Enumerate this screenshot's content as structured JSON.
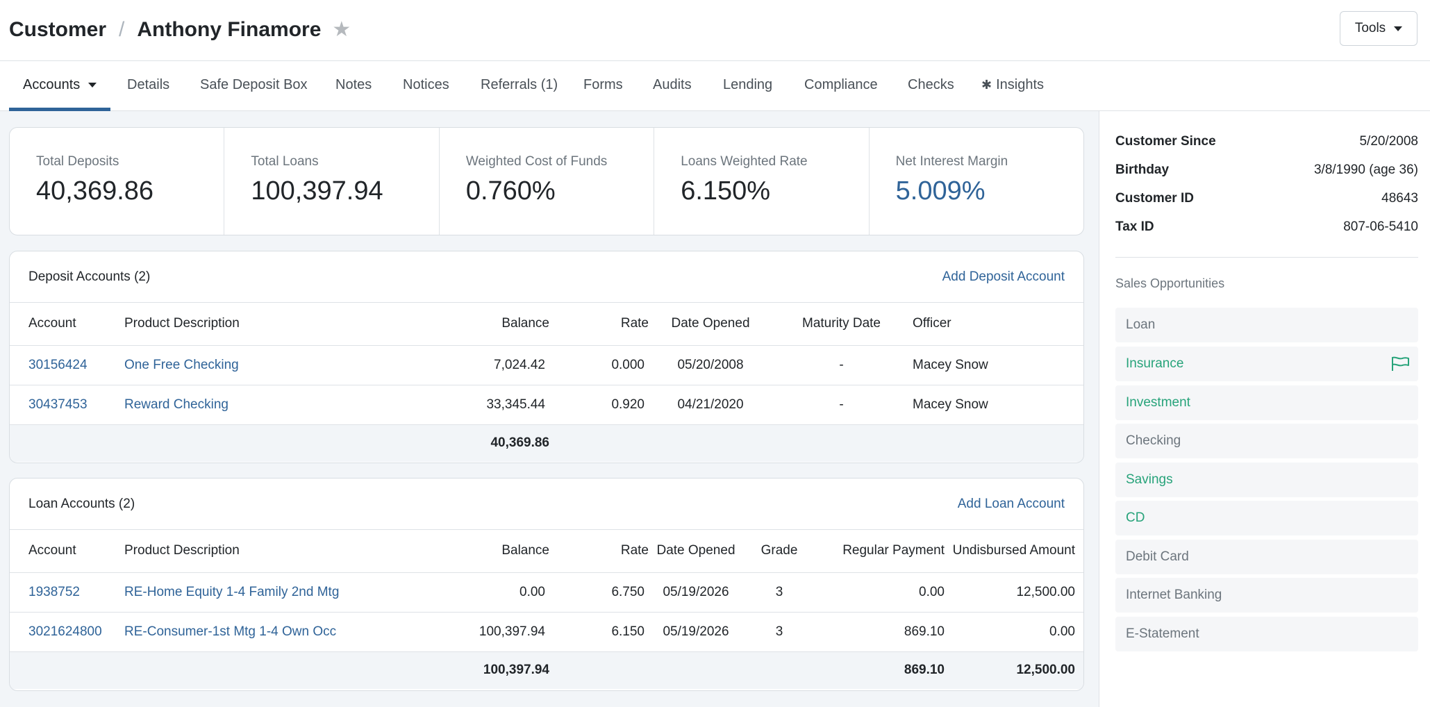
{
  "breadcrumb": {
    "section": "Customer",
    "separator": "/",
    "name": "Anthony Finamore",
    "favorite_icon": "star-icon"
  },
  "tools": {
    "label": "Tools"
  },
  "tabs": [
    {
      "label": "Accounts",
      "active": true,
      "has_dropdown": true
    },
    {
      "label": "Details"
    },
    {
      "label": "Safe Deposit Box"
    },
    {
      "label": "Notes"
    },
    {
      "label": "Notices"
    },
    {
      "label": "Referrals (1)"
    },
    {
      "label": "Forms"
    },
    {
      "label": "Audits"
    },
    {
      "label": "Lending"
    },
    {
      "label": "Compliance"
    },
    {
      "label": "Checks"
    },
    {
      "label": "Insights",
      "icon": "asterisk-icon",
      "icon_glyph": "✱"
    }
  ],
  "stats": [
    {
      "label": "Total Deposits",
      "value": "40,369.86"
    },
    {
      "label": "Total Loans",
      "value": "100,397.94"
    },
    {
      "label": "Weighted Cost of Funds",
      "value": "0.760%"
    },
    {
      "label": "Loans Weighted Rate",
      "value": "6.150%"
    },
    {
      "label": "Net Interest Margin",
      "value": "5.009%",
      "accent": "#2f6398"
    }
  ],
  "deposits": {
    "title": "Deposit Accounts (2)",
    "add_label": "Add Deposit Account",
    "columns": [
      "Account",
      "Product Description",
      "Balance",
      "Rate",
      "Date Opened",
      "Maturity Date",
      "Officer"
    ],
    "rows": [
      {
        "account": "30156424",
        "product": "One Free Checking",
        "balance": "7,024.42",
        "rate": "0.000",
        "opened": "05/20/2008",
        "maturity": "-",
        "officer": "Macey Snow"
      },
      {
        "account": "30437453",
        "product": "Reward Checking",
        "balance": "33,345.44",
        "rate": "0.920",
        "opened": "04/21/2020",
        "maturity": "-",
        "officer": "Macey Snow"
      }
    ],
    "total_balance": "40,369.86"
  },
  "loans": {
    "title": "Loan Accounts (2)",
    "add_label": "Add Loan Account",
    "columns": [
      "Account",
      "Product Description",
      "Balance",
      "Rate",
      "Date Opened",
      "Grade",
      "Regular Payment",
      "Undisbursed Amount"
    ],
    "rows": [
      {
        "account": "1938752",
        "product": "RE-Home Equity 1-4 Family 2nd Mtg",
        "balance": "0.00",
        "rate": "6.750",
        "opened": "05/19/2026",
        "grade": "3",
        "payment": "0.00",
        "undisbursed": "12,500.00"
      },
      {
        "account": "3021624800",
        "product": "RE-Consumer-1st Mtg 1-4 Own Occ",
        "balance": "100,397.94",
        "rate": "6.150",
        "opened": "05/19/2026",
        "grade": "3",
        "payment": "869.10",
        "undisbursed": "0.00"
      }
    ],
    "totals": {
      "balance": "100,397.94",
      "payment": "869.10",
      "undisbursed": "12,500.00"
    }
  },
  "customer_info": [
    {
      "label": "Customer Since",
      "value": "5/20/2008"
    },
    {
      "label": "Birthday",
      "value": "3/8/1990 (age 36)"
    },
    {
      "label": "Customer ID",
      "value": "48643"
    },
    {
      "label": "Tax ID",
      "value": "807-06-5410"
    }
  ],
  "sales": {
    "title": "Sales Opportunities",
    "highlight_color": "#27a37a",
    "items": [
      {
        "label": "Loan",
        "highlight": false
      },
      {
        "label": "Insurance",
        "highlight": true,
        "icon": "flag-icon"
      },
      {
        "label": "Investment",
        "highlight": true
      },
      {
        "label": "Checking",
        "highlight": false
      },
      {
        "label": "Savings",
        "highlight": true
      },
      {
        "label": "CD",
        "highlight": true
      },
      {
        "label": "Debit Card",
        "highlight": false
      },
      {
        "label": "Internet Banking",
        "highlight": false
      },
      {
        "label": "E-Statement",
        "highlight": false
      }
    ]
  }
}
